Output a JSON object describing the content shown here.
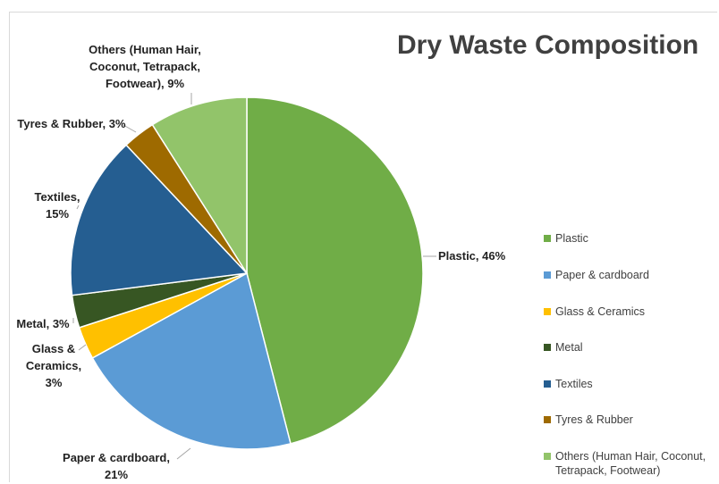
{
  "chart_data": {
    "type": "pie",
    "title": "Dry Waste Composition",
    "slices": [
      {
        "name": "Plastic",
        "value": 46,
        "color": "#70ad47",
        "label_lines": [
          "Plastic, 46%"
        ]
      },
      {
        "name": "Paper & cardboard",
        "value": 21,
        "color": "#5b9bd5",
        "label_lines": [
          "Paper & cardboard,",
          "21%"
        ]
      },
      {
        "name": "Glass & Ceramics",
        "value": 3,
        "color": "#ffc000",
        "label_lines": [
          "Glass &",
          "Ceramics,",
          "3%"
        ]
      },
      {
        "name": "Metal",
        "value": 3,
        "color": "#375623",
        "label_lines": [
          "Metal, 3%"
        ]
      },
      {
        "name": "Textiles",
        "value": 15,
        "color": "#255e91",
        "label_lines": [
          "Textiles,",
          "15%"
        ]
      },
      {
        "name": "Tyres & Rubber",
        "value": 3,
        "color": "#9e6a00",
        "label_lines": [
          "Tyres & Rubber, 3%"
        ]
      },
      {
        "name": "Others (Human Hair, Coconut, Tetrapack, Footwear)",
        "value": 9,
        "color": "#92c46a",
        "label_lines": [
          "Others (Human Hair,",
          "Coconut, Tetrapack,",
          "Footwear), 9%"
        ]
      }
    ],
    "legend": {
      "position": "right",
      "items": [
        {
          "text_lines": [
            "Plastic"
          ],
          "color": "#70ad47"
        },
        {
          "text_lines": [
            "Paper & cardboard"
          ],
          "color": "#5b9bd5"
        },
        {
          "text_lines": [
            "Glass &  Ceramics"
          ],
          "color": "#ffc000"
        },
        {
          "text_lines": [
            "Metal"
          ],
          "color": "#375623"
        },
        {
          "text_lines": [
            "Textiles"
          ],
          "color": "#255e91"
        },
        {
          "text_lines": [
            "Tyres & Rubber"
          ],
          "color": "#9e6a00"
        },
        {
          "text_lines": [
            "Others (Human Hair, Coconut,",
            "Tetrapack, Footwear)"
          ],
          "color": "#92c46a"
        }
      ]
    }
  }
}
